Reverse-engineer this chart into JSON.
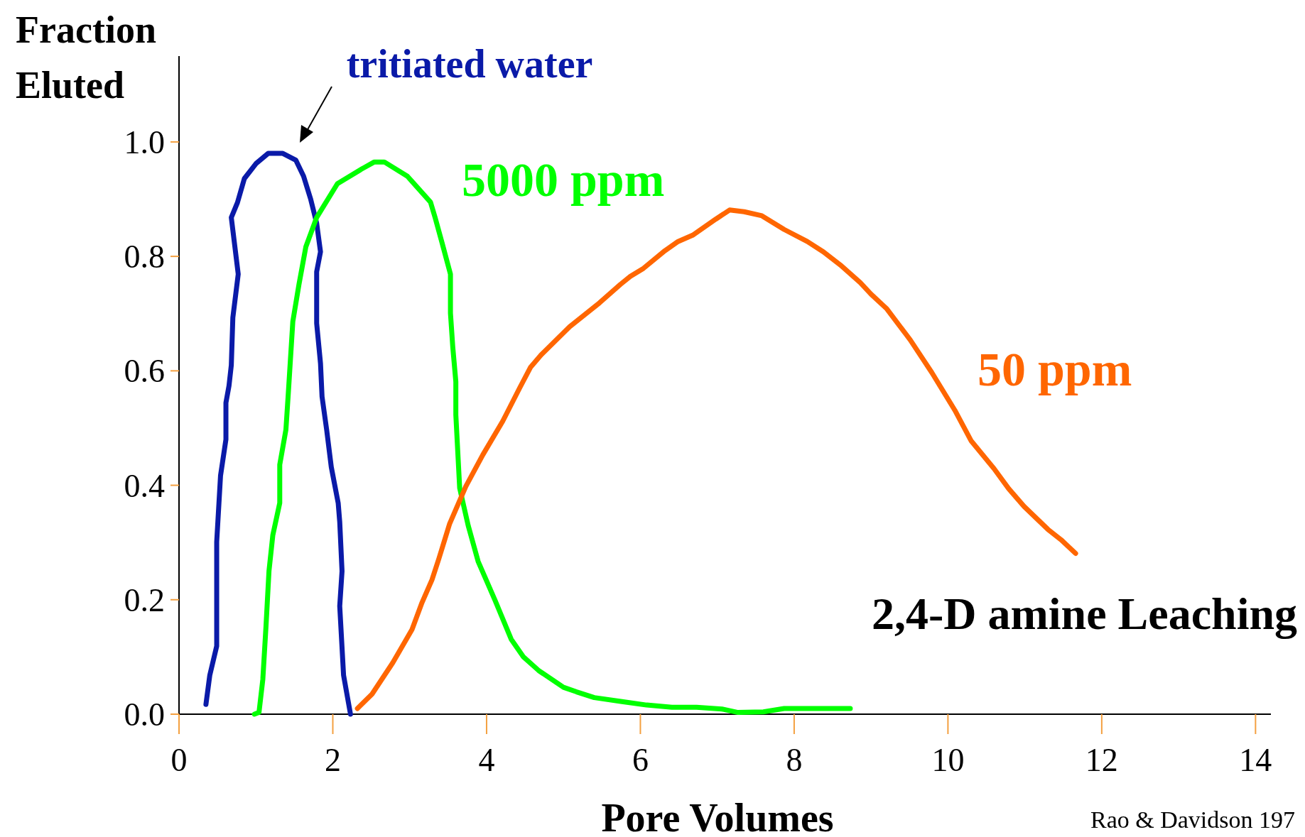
{
  "chart_data": {
    "type": "line",
    "title": "2,4-D amine Leaching",
    "xlabel": "Pore Volumes",
    "ylabel": "Fraction Eluted",
    "annotations": [
      "Rao & Davidson 197"
    ],
    "xlim": [
      0,
      14.2
    ],
    "ylim": [
      0,
      1.15
    ],
    "xticks": [
      0,
      2,
      4,
      6,
      8,
      10,
      12,
      14
    ],
    "yticks": [
      {
        "value": 0,
        "label": "0.0"
      },
      0.2,
      0.4,
      0.6,
      0.8,
      {
        "value": 1,
        "label": "1.0"
      }
    ],
    "grid": false,
    "marker": "none",
    "line_style": "solid",
    "series": [
      {
        "name": "tritiated water",
        "color": "#0a1aa8",
        "x": [
          0.35,
          0.4,
          0.49,
          0.49,
          0.54,
          0.61,
          0.61,
          0.65,
          0.68,
          0.7,
          0.77,
          0.7,
          0.68,
          0.76,
          0.85,
          1.0,
          1.16,
          1.35,
          1.52,
          1.62,
          1.71,
          1.79,
          1.84,
          1.79,
          1.79,
          1.84,
          1.86,
          1.92,
          1.98,
          2.07,
          2.09,
          2.12,
          2.09,
          2.14,
          2.23
        ],
        "values": [
          0.017,
          0.068,
          0.119,
          0.301,
          0.417,
          0.48,
          0.544,
          0.574,
          0.61,
          0.693,
          0.769,
          0.846,
          0.868,
          0.894,
          0.936,
          0.962,
          0.98,
          0.98,
          0.968,
          0.94,
          0.901,
          0.858,
          0.808,
          0.773,
          0.683,
          0.613,
          0.555,
          0.497,
          0.432,
          0.369,
          0.336,
          0.25,
          0.189,
          0.068,
          0.0
        ]
      },
      {
        "name": "5000 ppm",
        "color": "#00ff00",
        "x": [
          0.98,
          1.04,
          1.09,
          1.13,
          1.17,
          1.22,
          1.31,
          1.31,
          1.39,
          1.42,
          1.48,
          1.56,
          1.65,
          1.79,
          2.06,
          2.38,
          2.54,
          2.67,
          2.97,
          3.27,
          3.33,
          3.42,
          3.53,
          3.53,
          3.56,
          3.6,
          3.6,
          3.65,
          3.76,
          3.89,
          4.11,
          4.32,
          4.48,
          4.68,
          5.0,
          5.17,
          5.4,
          5.76,
          6.08,
          6.41,
          6.73,
          7.06,
          7.27,
          7.6,
          7.87,
          8.35,
          8.73
        ],
        "values": [
          0.0,
          0.003,
          0.061,
          0.151,
          0.25,
          0.313,
          0.369,
          0.436,
          0.497,
          0.558,
          0.686,
          0.751,
          0.817,
          0.868,
          0.927,
          0.953,
          0.965,
          0.965,
          0.94,
          0.895,
          0.868,
          0.824,
          0.769,
          0.701,
          0.642,
          0.581,
          0.523,
          0.395,
          0.33,
          0.267,
          0.199,
          0.131,
          0.1,
          0.076,
          0.047,
          0.039,
          0.029,
          0.022,
          0.016,
          0.012,
          0.012,
          0.009,
          0.003,
          0.004,
          0.01,
          0.01,
          0.01
        ]
      },
      {
        "name": "50 ppm",
        "color": "#ff6600",
        "x": [
          2.32,
          2.51,
          2.78,
          3.03,
          3.16,
          3.29,
          3.38,
          3.52,
          3.73,
          3.95,
          4.21,
          4.43,
          4.57,
          4.71,
          5.08,
          5.47,
          5.74,
          5.87,
          6.03,
          6.32,
          6.49,
          6.68,
          6.98,
          7.16,
          7.35,
          7.58,
          7.87,
          8.17,
          8.38,
          8.6,
          8.86,
          9.0,
          9.2,
          9.51,
          9.79,
          10.09,
          10.3,
          10.6,
          10.79,
          10.99,
          11.3,
          11.47,
          11.66
        ],
        "values": [
          0.01,
          0.035,
          0.09,
          0.148,
          0.195,
          0.235,
          0.272,
          0.333,
          0.398,
          0.453,
          0.512,
          0.57,
          0.606,
          0.628,
          0.677,
          0.719,
          0.751,
          0.765,
          0.778,
          0.81,
          0.826,
          0.837,
          0.865,
          0.881,
          0.878,
          0.871,
          0.847,
          0.826,
          0.808,
          0.785,
          0.754,
          0.734,
          0.709,
          0.654,
          0.597,
          0.531,
          0.478,
          0.429,
          0.394,
          0.363,
          0.323,
          0.305,
          0.281
        ]
      }
    ]
  }
}
